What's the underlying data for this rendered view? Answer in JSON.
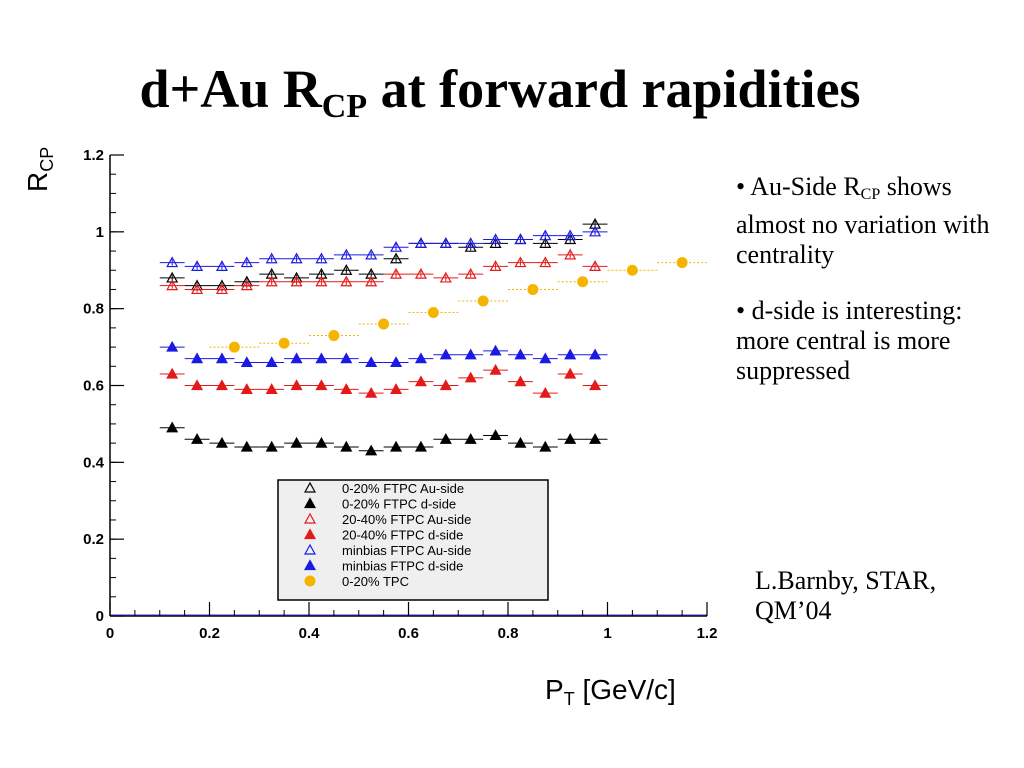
{
  "title": {
    "main": "d+Au R",
    "sub": "CP",
    "rest": " at forward rapidities"
  },
  "bullets": [
    {
      "pre": "• Au-Side R",
      "sub": "CP",
      "post": " shows almost no variation with centrality"
    },
    {
      "pre": "• d-side is interesting: more central is more suppressed",
      "sub": "",
      "post": ""
    }
  ],
  "credit": {
    "line1": "L.Barnby, STAR,",
    "line2": "QM’04"
  },
  "chart_data": {
    "type": "scatter",
    "title": "",
    "xlabel": {
      "main": "P",
      "sub": "T",
      "rest": " [GeV/c]"
    },
    "ylabel": {
      "main": "R",
      "sub": "CP"
    },
    "xlim": [
      0,
      1.2
    ],
    "ylim": [
      0,
      1.2
    ],
    "xticks": [
      "0",
      "0.2",
      "0.4",
      "0.6",
      "0.8",
      "1",
      "1.2"
    ],
    "yticks": [
      "0",
      "0.2",
      "0.4",
      "0.6",
      "0.8",
      "1",
      "1.2"
    ],
    "xtick_values": [
      0,
      0.2,
      0.4,
      0.6,
      0.8,
      1.0,
      1.2
    ],
    "ytick_values": [
      0,
      0.2,
      0.4,
      0.6,
      0.8,
      1.0,
      1.2
    ],
    "legend_position": "bottom-center",
    "series": [
      {
        "name": "0-20% FTPC Au-side",
        "marker": "triangle-open",
        "color": "#000000",
        "x": [
          0.125,
          0.175,
          0.225,
          0.275,
          0.325,
          0.375,
          0.425,
          0.475,
          0.525,
          0.575,
          0.625,
          0.675,
          0.725,
          0.775,
          0.825,
          0.875,
          0.925,
          0.975
        ],
        "y": [
          0.88,
          0.86,
          0.86,
          0.87,
          0.89,
          0.88,
          0.89,
          0.9,
          0.89,
          0.93,
          0.97,
          0.97,
          0.96,
          0.97,
          0.98,
          0.97,
          0.98,
          1.02
        ]
      },
      {
        "name": "0-20% FTPC d-side",
        "marker": "triangle-filled",
        "color": "#000000",
        "x": [
          0.125,
          0.175,
          0.225,
          0.275,
          0.325,
          0.375,
          0.425,
          0.475,
          0.525,
          0.575,
          0.625,
          0.675,
          0.725,
          0.775,
          0.825,
          0.875,
          0.925,
          0.975
        ],
        "y": [
          0.49,
          0.46,
          0.45,
          0.44,
          0.44,
          0.45,
          0.45,
          0.44,
          0.43,
          0.44,
          0.44,
          0.46,
          0.46,
          0.47,
          0.45,
          0.44,
          0.46,
          0.46
        ]
      },
      {
        "name": "20-40% FTPC Au-side",
        "marker": "triangle-open",
        "color": "#e41a1a",
        "x": [
          0.125,
          0.175,
          0.225,
          0.275,
          0.325,
          0.375,
          0.425,
          0.475,
          0.525,
          0.575,
          0.625,
          0.675,
          0.725,
          0.775,
          0.825,
          0.875,
          0.925,
          0.975
        ],
        "y": [
          0.86,
          0.85,
          0.85,
          0.86,
          0.87,
          0.87,
          0.87,
          0.87,
          0.87,
          0.89,
          0.89,
          0.88,
          0.89,
          0.91,
          0.92,
          0.92,
          0.94,
          0.91
        ]
      },
      {
        "name": "20-40% FTPC d-side",
        "marker": "triangle-filled",
        "color": "#e41a1a",
        "x": [
          0.125,
          0.175,
          0.225,
          0.275,
          0.325,
          0.375,
          0.425,
          0.475,
          0.525,
          0.575,
          0.625,
          0.675,
          0.725,
          0.775,
          0.825,
          0.875,
          0.925,
          0.975
        ],
        "y": [
          0.63,
          0.6,
          0.6,
          0.59,
          0.59,
          0.6,
          0.6,
          0.59,
          0.58,
          0.59,
          0.61,
          0.6,
          0.62,
          0.64,
          0.61,
          0.58,
          0.63,
          0.6
        ]
      },
      {
        "name": "minbias FTPC Au-side",
        "marker": "triangle-open",
        "color": "#1a1ae4",
        "x": [
          0.125,
          0.175,
          0.225,
          0.275,
          0.325,
          0.375,
          0.425,
          0.475,
          0.525,
          0.575,
          0.625,
          0.675,
          0.725,
          0.775,
          0.825,
          0.875,
          0.925,
          0.975
        ],
        "y": [
          0.92,
          0.91,
          0.91,
          0.92,
          0.93,
          0.93,
          0.93,
          0.94,
          0.94,
          0.96,
          0.97,
          0.97,
          0.97,
          0.98,
          0.98,
          0.99,
          0.99,
          1.0
        ]
      },
      {
        "name": "minbias FTPC d-side",
        "marker": "triangle-filled",
        "color": "#1a1ae4",
        "x": [
          0.125,
          0.175,
          0.225,
          0.275,
          0.325,
          0.375,
          0.425,
          0.475,
          0.525,
          0.575,
          0.625,
          0.675,
          0.725,
          0.775,
          0.825,
          0.875,
          0.925,
          0.975
        ],
        "y": [
          0.7,
          0.67,
          0.67,
          0.66,
          0.66,
          0.67,
          0.67,
          0.67,
          0.66,
          0.66,
          0.67,
          0.68,
          0.68,
          0.69,
          0.68,
          0.67,
          0.68,
          0.68
        ]
      },
      {
        "name": "0-20% TPC",
        "marker": "circle-filled",
        "color": "#f5b400",
        "x": [
          0.25,
          0.35,
          0.45,
          0.55,
          0.65,
          0.75,
          0.85,
          0.95,
          1.05,
          1.15
        ],
        "y": [
          0.7,
          0.71,
          0.73,
          0.76,
          0.79,
          0.82,
          0.85,
          0.87,
          0.9,
          0.92
        ]
      }
    ]
  }
}
